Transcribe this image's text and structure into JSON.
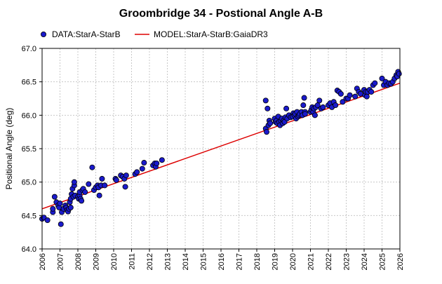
{
  "chart_data": {
    "type": "scatter",
    "title": "Groombridge 34 - Postional Angle A-B",
    "xlabel": "",
    "ylabel": "Positional Angle (deg)",
    "xlim": [
      2006,
      2026
    ],
    "ylim": [
      64.0,
      67.0
    ],
    "x_ticks": [
      "2006",
      "2007",
      "2008",
      "2009",
      "2010",
      "2011",
      "2012",
      "2013",
      "2014",
      "2015",
      "2016",
      "2017",
      "2018",
      "2019",
      "2020",
      "2021",
      "2022",
      "2023",
      "2024",
      "2025",
      "2026"
    ],
    "y_ticks": [
      "64.0",
      "64.5",
      "65.0",
      "65.5",
      "66.0",
      "66.5",
      "67.0"
    ],
    "grid": true,
    "legend_position": "top",
    "colors": {
      "data": "#1a1acc",
      "model": "#dd0000"
    },
    "series": [
      {
        "name": "DATA:StarA-StarB",
        "kind": "scatter",
        "x": [
          2006.0,
          2006.1,
          2006.3,
          2006.6,
          2006.6,
          2006.7,
          2006.8,
          2006.9,
          2006.95,
          2007.0,
          2007.05,
          2007.1,
          2007.2,
          2007.3,
          2007.35,
          2007.4,
          2007.45,
          2007.5,
          2007.55,
          2007.6,
          2007.6,
          2007.65,
          2007.7,
          2007.75,
          2007.8,
          2007.8,
          2007.85,
          2008.0,
          2008.05,
          2008.1,
          2008.1,
          2008.15,
          2008.2,
          2008.25,
          2008.3,
          2008.4,
          2008.6,
          2008.8,
          2008.9,
          2009.0,
          2009.1,
          2009.15,
          2009.2,
          2009.3,
          2009.35,
          2009.5,
          2010.1,
          2010.15,
          2010.4,
          2010.5,
          2010.6,
          2010.65,
          2010.7,
          2011.2,
          2011.3,
          2011.6,
          2011.7,
          2012.2,
          2012.3,
          2012.35,
          2012.4,
          2012.7,
          2018.5,
          2018.5,
          2018.55,
          2018.6,
          2018.65,
          2018.7,
          2018.75,
          2019.0,
          2019.05,
          2019.1,
          2019.15,
          2019.2,
          2019.25,
          2019.3,
          2019.35,
          2019.4,
          2019.45,
          2019.5,
          2019.55,
          2019.6,
          2019.65,
          2019.7,
          2019.8,
          2019.9,
          2020.0,
          2020.05,
          2020.1,
          2020.15,
          2020.2,
          2020.25,
          2020.3,
          2020.35,
          2020.4,
          2020.5,
          2020.55,
          2020.6,
          2020.65,
          2020.7,
          2020.7,
          2021.0,
          2021.05,
          2021.1,
          2021.15,
          2021.2,
          2021.25,
          2021.3,
          2021.4,
          2021.5,
          2021.6,
          2021.7,
          2022.0,
          2022.1,
          2022.2,
          2022.3,
          2022.4,
          2022.5,
          2022.6,
          2022.7,
          2022.8,
          2023.0,
          2023.1,
          2023.2,
          2023.5,
          2023.6,
          2023.7,
          2023.8,
          2024.0,
          2024.05,
          2024.1,
          2024.15,
          2024.2,
          2024.3,
          2024.4,
          2024.5,
          2024.6,
          2025.0,
          2025.1,
          2025.2,
          2025.3,
          2025.4,
          2025.5,
          2025.6,
          2025.7,
          2025.8,
          2025.85,
          2025.9,
          2025.95
        ],
        "y": [
          64.45,
          64.47,
          64.43,
          64.55,
          64.6,
          64.78,
          64.7,
          64.65,
          64.62,
          64.68,
          64.37,
          64.55,
          64.6,
          64.65,
          64.62,
          64.58,
          64.56,
          64.6,
          64.7,
          64.62,
          64.75,
          64.82,
          64.9,
          64.78,
          64.95,
          65.0,
          64.8,
          64.78,
          64.75,
          64.8,
          64.85,
          64.75,
          64.72,
          64.88,
          64.9,
          64.85,
          64.97,
          65.22,
          64.88,
          64.92,
          64.95,
          64.92,
          64.8,
          64.95,
          65.05,
          64.95,
          65.05,
          65.03,
          65.1,
          65.08,
          65.05,
          64.93,
          65.1,
          65.12,
          65.15,
          65.2,
          65.29,
          65.25,
          65.28,
          65.23,
          65.28,
          65.33,
          65.8,
          66.22,
          65.75,
          66.1,
          65.85,
          65.92,
          65.88,
          65.95,
          65.9,
          65.92,
          65.88,
          65.98,
          65.9,
          65.85,
          65.92,
          65.95,
          65.88,
          65.92,
          65.9,
          65.97,
          66.1,
          65.95,
          66.0,
          65.97,
          65.98,
          66.03,
          66.0,
          66.02,
          65.95,
          66.05,
          65.98,
          66.0,
          66.02,
          66.05,
          66.0,
          66.15,
          66.26,
          66.05,
          66.02,
          66.05,
          66.08,
          66.12,
          66.05,
          66.1,
          66.0,
          66.12,
          66.15,
          66.22,
          66.1,
          66.12,
          66.15,
          66.18,
          66.12,
          66.2,
          66.15,
          66.37,
          66.35,
          66.32,
          66.2,
          66.25,
          66.25,
          66.3,
          66.28,
          66.4,
          66.35,
          66.32,
          66.38,
          66.3,
          66.35,
          66.28,
          66.35,
          66.38,
          66.35,
          66.45,
          66.48,
          66.55,
          66.45,
          66.5,
          66.45,
          66.48,
          66.47,
          66.5,
          66.55,
          66.6,
          66.58,
          66.65,
          66.62
        ]
      },
      {
        "name": "MODEL:StarA-StarB:GaiaDR3",
        "kind": "line",
        "x": [
          2006.0,
          2026.0
        ],
        "y": [
          64.6,
          66.48
        ]
      }
    ]
  }
}
